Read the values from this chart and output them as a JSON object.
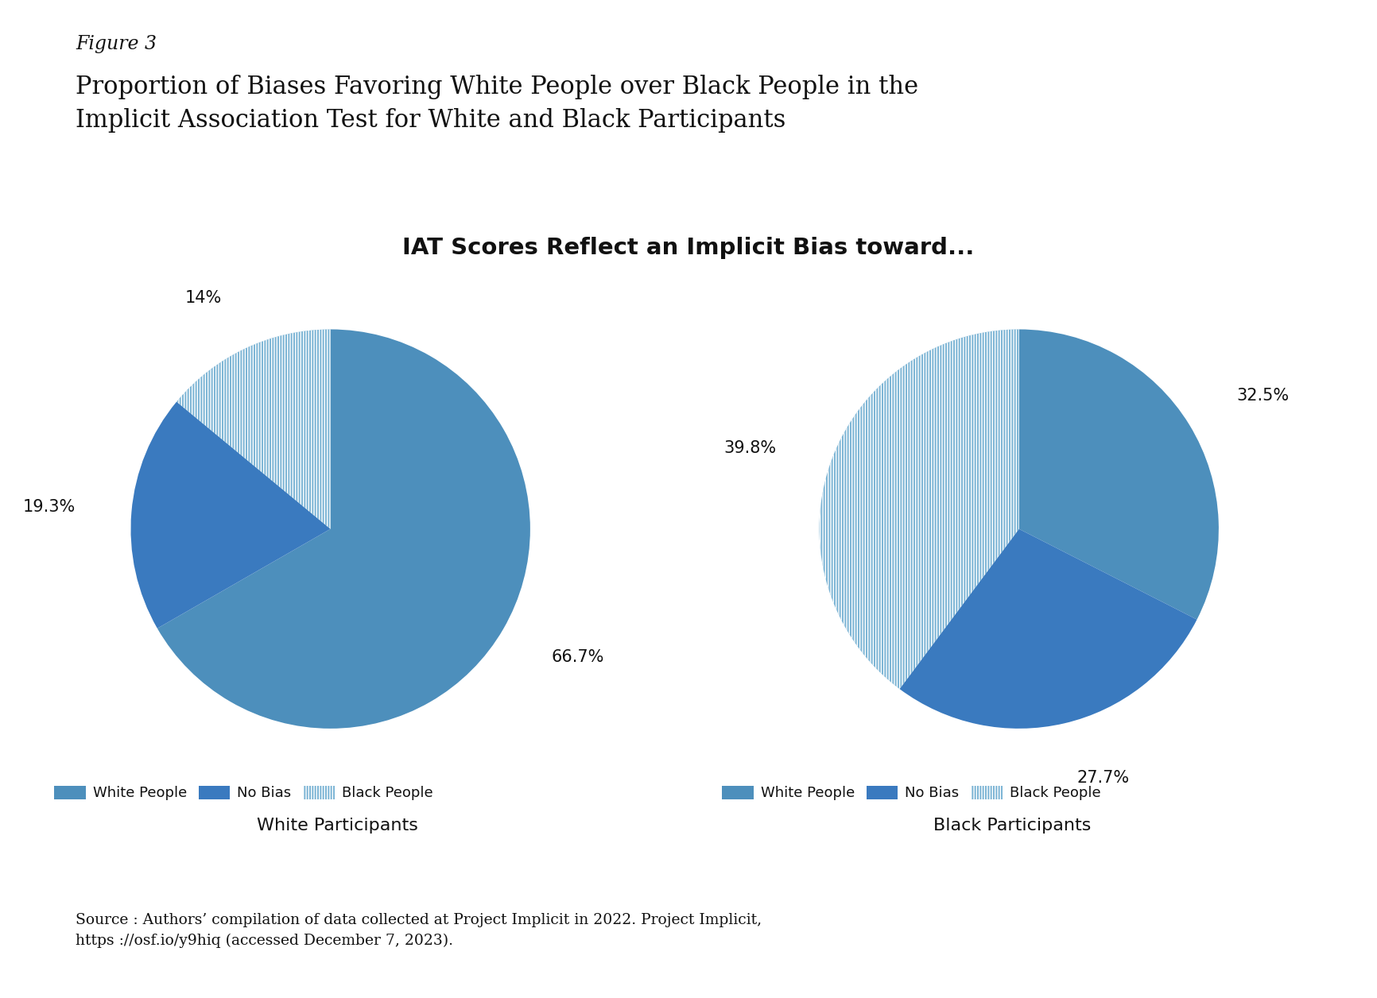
{
  "figure_label": "Figure 3",
  "title_main": "Proportion of Biases Favoring White People over Black People in the\nImplicit Association Test for White and Black Participants",
  "chart_title": "IAT Scores Reflect an Implicit Bias toward...",
  "white_participants": {
    "labels": [
      "White People",
      "No Bias",
      "Black People"
    ],
    "values": [
      66.7,
      19.3,
      14.0
    ],
    "pct_labels": [
      "66.7%",
      "19.3%",
      "14%"
    ],
    "label": "White Participants"
  },
  "black_participants": {
    "labels": [
      "White People",
      "No Bias",
      "Black People"
    ],
    "values": [
      32.5,
      27.7,
      39.8
    ],
    "pct_labels": [
      "32.5%",
      "27.7%",
      "39.8%"
    ],
    "label": "Black Participants"
  },
  "color_white_people": "#4d8fbc",
  "color_no_bias": "#3a7abf",
  "color_black_people": "#7ab3d4",
  "hatch_white_people": "=====",
  "hatch_no_bias": "",
  "hatch_black_people": "|||||",
  "source_text": "Source : Authors’ compilation of data collected at Project Implicit in 2022. Project Implicit,\nhttps ://osf.io/y9hiq (accessed December 7, 2023).",
  "background_color": "#ffffff"
}
